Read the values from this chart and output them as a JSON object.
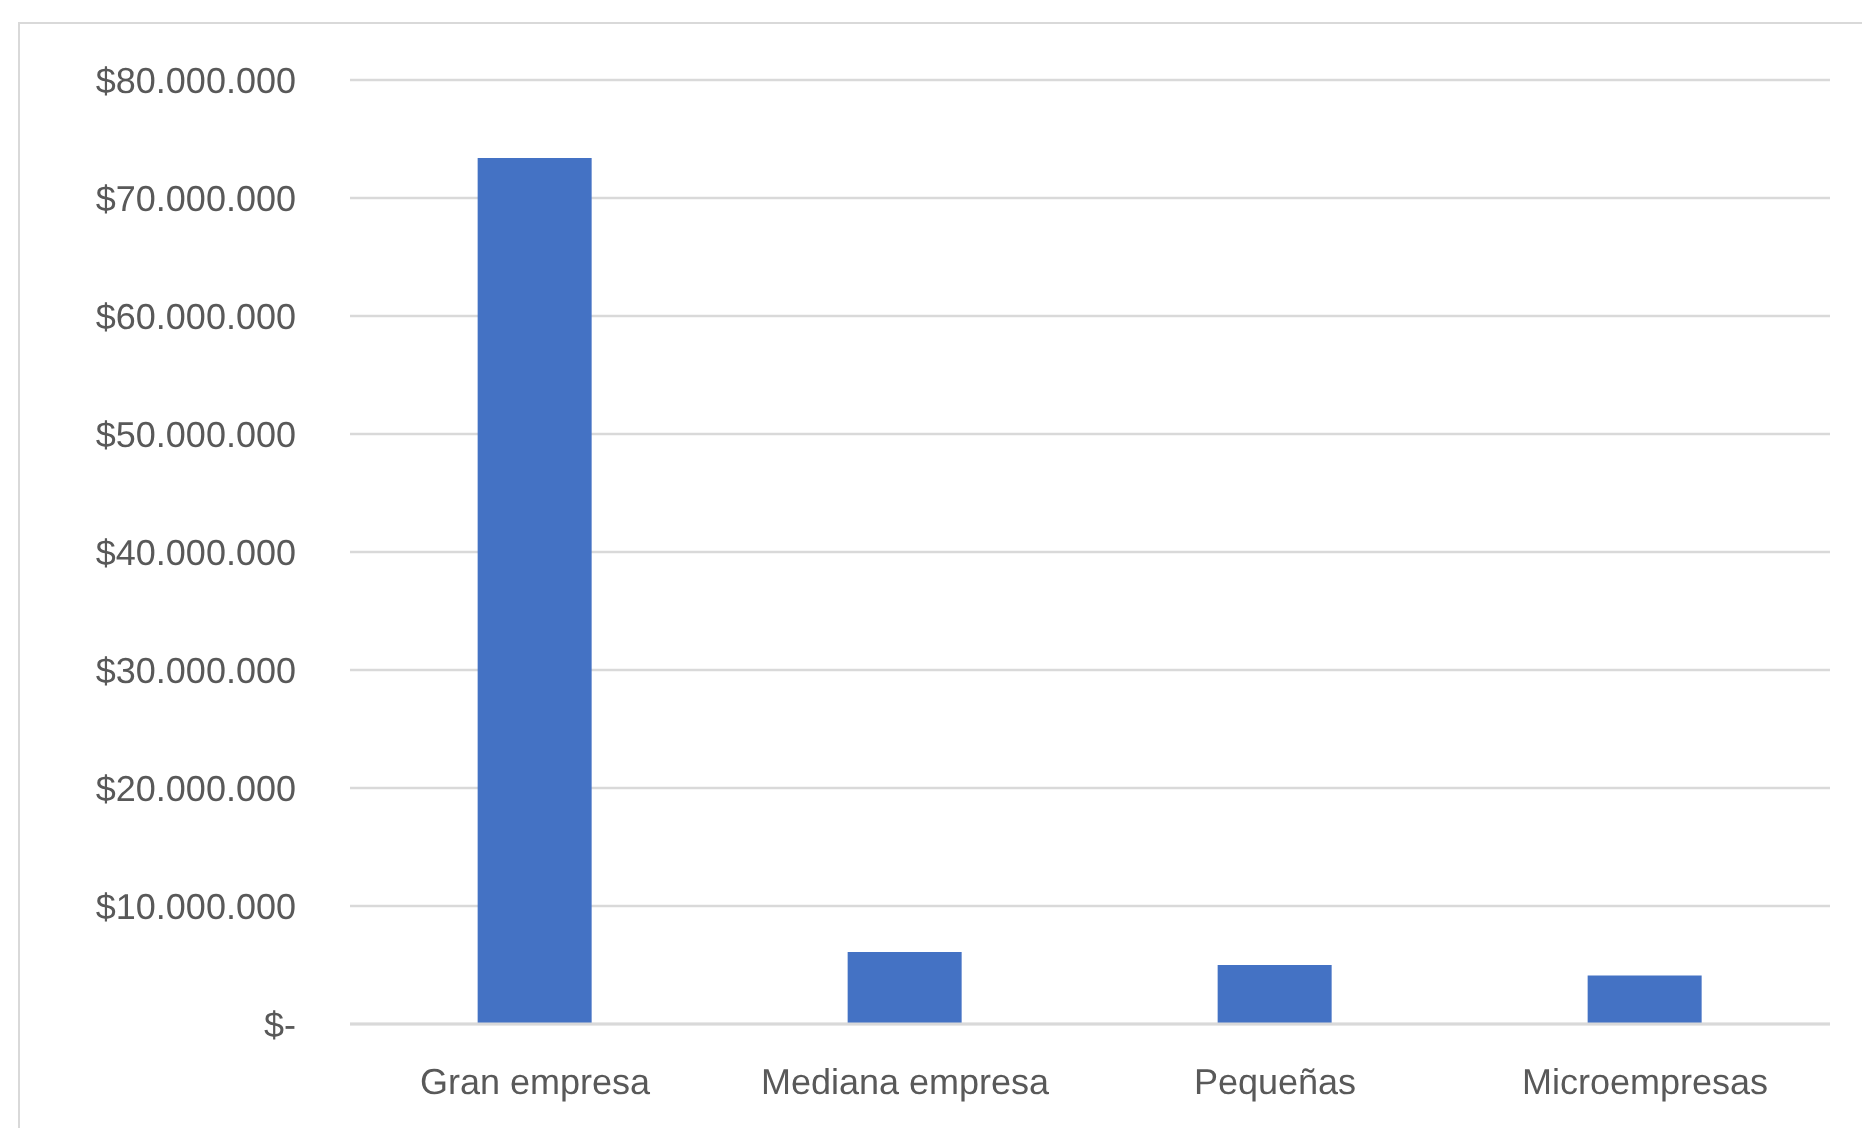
{
  "chart_data": {
    "type": "bar",
    "categories": [
      "Gran empresa",
      "Mediana empresa",
      "Pequeñas",
      "Microempresas"
    ],
    "values": [
      73400000,
      6100000,
      5000000,
      4100000
    ],
    "color": "#4472c4",
    "ylim": [
      0,
      80000000
    ],
    "yticks": [
      {
        "value": 0,
        "label": "$-"
      },
      {
        "value": 10000000,
        "label": "$10.000.000"
      },
      {
        "value": 20000000,
        "label": "$20.000.000"
      },
      {
        "value": 30000000,
        "label": "$30.000.000"
      },
      {
        "value": 40000000,
        "label": "$40.000.000"
      },
      {
        "value": 50000000,
        "label": "$50.000.000"
      },
      {
        "value": 60000000,
        "label": "$60.000.000"
      },
      {
        "value": 70000000,
        "label": "$70.000.000"
      },
      {
        "value": 80000000,
        "label": "$80.000.000"
      }
    ],
    "grid": "y"
  }
}
